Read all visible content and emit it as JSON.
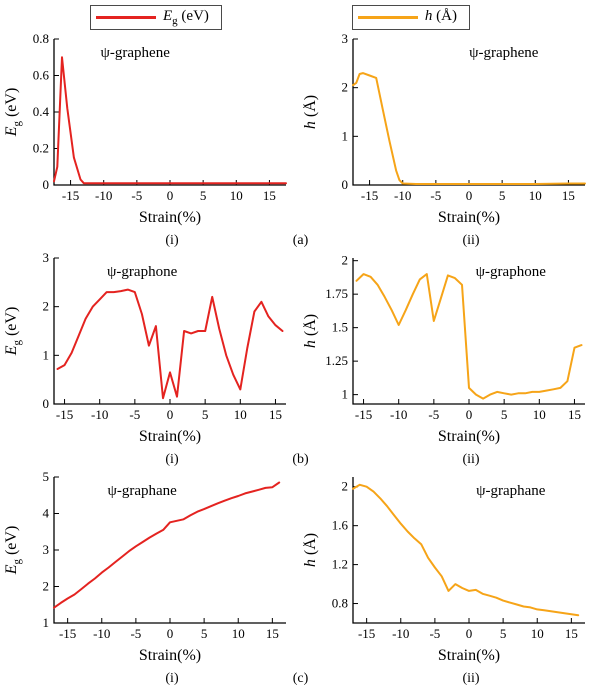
{
  "figure": {
    "legend": {
      "position": "top",
      "entries": [
        {
          "name": "Eg-eV",
          "pre": "E",
          "sub": "g",
          "post": " (eV)",
          "color": "#e42320"
        },
        {
          "name": "h-angstrom",
          "pre": "h",
          "sub": "",
          "post": " (Å)",
          "color": "#f6a418"
        }
      ]
    },
    "rows": [
      {
        "label": "(a)"
      },
      {
        "label": "(b)"
      },
      {
        "label": "(c)"
      }
    ]
  },
  "chart_data": [
    {
      "type": "line",
      "tag": "(i)",
      "title": "ψ-graphene",
      "xlabel": "Strain(%)",
      "ylabel": {
        "pre": "E",
        "sub": "g",
        "post": " (eV)"
      },
      "color": "#e42320",
      "grid": false,
      "xlim": [
        -17.5,
        17.5
      ],
      "ylim": [
        0,
        0.8
      ],
      "xticks": [
        -15,
        -10,
        -5,
        0,
        5,
        10,
        15
      ],
      "yticks": [
        0,
        0.2,
        0.4,
        0.6,
        0.8
      ],
      "title_x": 0.35,
      "x": [
        -17.5,
        -17,
        -16.3,
        -15.5,
        -14.5,
        -13.5,
        -13,
        -10,
        -5,
        0,
        5,
        10,
        15,
        17.5
      ],
      "y": [
        0.02,
        0.1,
        0.7,
        0.42,
        0.15,
        0.03,
        0.01,
        0.01,
        0.01,
        0.01,
        0.01,
        0.01,
        0.01,
        0.01
      ]
    },
    {
      "type": "line",
      "tag": "(ii)",
      "title": "ψ-graphene",
      "xlabel": "Strain(%)",
      "ylabel": {
        "pre": "h",
        "sub": "",
        "post": " (Å)"
      },
      "color": "#f6a418",
      "grid": false,
      "xlim": [
        -17.5,
        17.5
      ],
      "ylim": [
        0,
        3
      ],
      "xticks": [
        -15,
        -10,
        -5,
        0,
        5,
        10,
        15
      ],
      "yticks": [
        0,
        1,
        2,
        3
      ],
      "title_x": 0.65,
      "x": [
        -17.5,
        -17,
        -16.5,
        -16,
        -15,
        -14,
        -13,
        -12,
        -11,
        -10.5,
        -10,
        -8,
        -5,
        0,
        5,
        10,
        15,
        17.5
      ],
      "y": [
        2.05,
        2.1,
        2.28,
        2.3,
        2.25,
        2.2,
        1.55,
        0.9,
        0.3,
        0.1,
        0.03,
        0.02,
        0.02,
        0.02,
        0.02,
        0.02,
        0.03,
        0.03
      ]
    },
    {
      "type": "line",
      "tag": "(i)",
      "title": "ψ-graphone",
      "xlabel": "Strain(%)",
      "ylabel": {
        "pre": "E",
        "sub": "g",
        "post": " (eV)"
      },
      "color": "#e42320",
      "grid": false,
      "xlim": [
        -16.5,
        16.5
      ],
      "ylim": [
        0,
        3
      ],
      "xticks": [
        -15,
        -10,
        -5,
        0,
        5,
        10,
        15
      ],
      "yticks": [
        0,
        1,
        2,
        3
      ],
      "title_x": 0.38,
      "x": [
        -16,
        -15,
        -14,
        -13,
        -12,
        -11,
        -10,
        -9,
        -8,
        -7,
        -6,
        -5,
        -4,
        -3,
        -2,
        -1,
        0,
        1,
        2,
        3,
        4,
        5,
        6,
        7,
        8,
        9,
        10,
        11,
        12,
        13,
        14,
        15,
        16
      ],
      "y": [
        0.72,
        0.8,
        1.05,
        1.4,
        1.75,
        2.0,
        2.15,
        2.3,
        2.3,
        2.32,
        2.35,
        2.3,
        1.85,
        1.2,
        1.6,
        0.12,
        0.65,
        0.15,
        1.5,
        1.45,
        1.5,
        1.5,
        2.2,
        1.55,
        1.0,
        0.6,
        0.3,
        1.15,
        1.9,
        2.1,
        1.8,
        1.62,
        1.5
      ]
    },
    {
      "type": "line",
      "tag": "(ii)",
      "title": "ψ-graphone",
      "xlabel": "Strain(%)",
      "ylabel": {
        "pre": "h",
        "sub": "",
        "post": " (Å)"
      },
      "color": "#f6a418",
      "grid": false,
      "xlim": [
        -16.5,
        16.5
      ],
      "ylim": [
        0.93,
        2.02
      ],
      "xticks": [
        -15,
        -10,
        -5,
        0,
        5,
        10,
        15
      ],
      "yticks": [
        1,
        1.25,
        1.5,
        1.75,
        2
      ],
      "title_x": 0.68,
      "x": [
        -16,
        -15,
        -14,
        -13,
        -12,
        -11,
        -10,
        -9,
        -8,
        -7,
        -6,
        -5,
        -4,
        -3,
        -2,
        -1,
        0,
        1,
        2,
        3,
        4,
        5,
        6,
        7,
        8,
        9,
        10,
        11,
        12,
        13,
        14,
        15,
        16
      ],
      "y": [
        1.85,
        1.9,
        1.88,
        1.82,
        1.73,
        1.63,
        1.52,
        1.63,
        1.75,
        1.86,
        1.9,
        1.55,
        1.72,
        1.89,
        1.87,
        1.82,
        1.05,
        1.0,
        0.97,
        1.0,
        1.02,
        1.01,
        1.0,
        1.01,
        1.01,
        1.02,
        1.02,
        1.03,
        1.04,
        1.05,
        1.1,
        1.35,
        1.37
      ]
    },
    {
      "type": "line",
      "tag": "(i)",
      "title": "ψ-graphane",
      "xlabel": "Strain(%)",
      "ylabel": {
        "pre": "E",
        "sub": "g",
        "post": " (eV)"
      },
      "color": "#e42320",
      "grid": false,
      "xlim": [
        -17,
        17
      ],
      "ylim": [
        1,
        5
      ],
      "xticks": [
        -15,
        -10,
        -5,
        0,
        5,
        10,
        15
      ],
      "yticks": [
        1,
        2,
        3,
        4,
        5
      ],
      "title_x": 0.38,
      "x": [
        -17,
        -16,
        -15,
        -14,
        -13,
        -12,
        -11,
        -10,
        -9,
        -8,
        -7,
        -6,
        -5,
        -4,
        -3,
        -2,
        -1,
        0,
        1,
        2,
        3,
        4,
        5,
        6,
        7,
        8,
        9,
        10,
        11,
        12,
        13,
        14,
        15,
        16
      ],
      "y": [
        1.42,
        1.55,
        1.67,
        1.78,
        1.93,
        2.08,
        2.22,
        2.38,
        2.52,
        2.67,
        2.82,
        2.97,
        3.1,
        3.22,
        3.34,
        3.45,
        3.55,
        3.76,
        3.8,
        3.84,
        3.95,
        4.05,
        4.12,
        4.2,
        4.28,
        4.35,
        4.42,
        4.48,
        4.55,
        4.6,
        4.65,
        4.7,
        4.72,
        4.85
      ]
    },
    {
      "type": "line",
      "tag": "(ii)",
      "title": "ψ-graphane",
      "xlabel": "Strain(%)",
      "ylabel": {
        "pre": "h",
        "sub": "",
        "post": " (Å)"
      },
      "color": "#f6a418",
      "grid": false,
      "xlim": [
        -17,
        17
      ],
      "ylim": [
        0.6,
        2.1
      ],
      "xticks": [
        -15,
        -10,
        -5,
        0,
        5,
        10,
        15
      ],
      "yticks": [
        0.8,
        1.2,
        1.6,
        2
      ],
      "title_x": 0.68,
      "x": [
        -17,
        -16,
        -15,
        -14,
        -13,
        -12,
        -11,
        -10,
        -9,
        -8,
        -7,
        -6,
        -5,
        -4,
        -3,
        -2,
        -1,
        0,
        1,
        2,
        3,
        4,
        5,
        6,
        7,
        8,
        9,
        10,
        11,
        12,
        13,
        14,
        15,
        16
      ],
      "y": [
        1.98,
        2.02,
        2.0,
        1.95,
        1.88,
        1.8,
        1.71,
        1.62,
        1.54,
        1.47,
        1.41,
        1.27,
        1.17,
        1.08,
        0.93,
        1.0,
        0.96,
        0.93,
        0.94,
        0.9,
        0.88,
        0.86,
        0.83,
        0.81,
        0.79,
        0.77,
        0.76,
        0.74,
        0.73,
        0.72,
        0.71,
        0.7,
        0.69,
        0.68
      ]
    }
  ]
}
